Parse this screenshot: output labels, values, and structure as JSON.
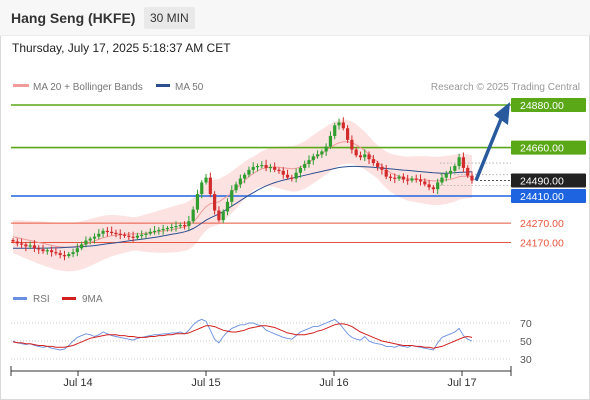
{
  "header": {
    "instrument": "Hang Seng (HKFE)",
    "timeframe": "30 MIN"
  },
  "datetime": "Thursday, July 17, 2025 5:18:37 AM CET",
  "legend": {
    "bollinger": "MA 20 + Bollinger Bands",
    "ma50": "MA 50",
    "credit": "Research © 2025 Trading Central"
  },
  "rsi_legend": {
    "rsi": "RSI",
    "ma": "9MA"
  },
  "colors": {
    "resistance": "#5aa817",
    "support": "#1e64e0",
    "pivot": "#e8553e",
    "current": "#222222",
    "arrow": "#2a5a9e",
    "bollinger_fill": "#fde2e2",
    "ma20": "#f19a9a",
    "ma50": "#2d4f8f",
    "candle_up": "#2f9e2f",
    "candle_down": "#d22b2b",
    "rsi_line": "#6a8fe0",
    "rsi_ma": "#d22020"
  },
  "chart_data": {
    "type": "candlestick",
    "x_ticks": [
      "Jul 14",
      "Jul 15",
      "Jul 16",
      "Jul 17"
    ],
    "y_scale": {
      "min": 23950,
      "max": 24950
    },
    "levels": [
      {
        "label": "24880.00",
        "value": 24880,
        "kind": "resistance"
      },
      {
        "label": "24660.00",
        "value": 24660,
        "kind": "resistance"
      },
      {
        "label": "24490.00",
        "value": 24490,
        "kind": "current"
      },
      {
        "label": "24410.00",
        "value": 24410,
        "kind": "support"
      },
      {
        "label": "24270.00",
        "value": 24270,
        "kind": "pivot"
      },
      {
        "label": "24170.00",
        "value": 24170,
        "kind": "pivot"
      }
    ],
    "close_series": [
      24175,
      24165,
      24160,
      24150,
      24155,
      24140,
      24135,
      24125,
      24130,
      24120,
      24115,
      24105,
      24100,
      24110,
      24120,
      24140,
      24160,
      24180,
      24190,
      24200,
      24215,
      24230,
      24225,
      24220,
      24215,
      24210,
      24205,
      24200,
      24195,
      24205,
      24210,
      24215,
      24225,
      24230,
      24235,
      24240,
      24245,
      24250,
      24255,
      24260,
      24255,
      24280,
      24340,
      24420,
      24480,
      24505,
      24420,
      24335,
      24285,
      24330,
      24380,
      24440,
      24470,
      24500,
      24520,
      24545,
      24560,
      24565,
      24570,
      24555,
      24560,
      24545,
      24540,
      24520,
      24505,
      24500,
      24530,
      24555,
      24575,
      24595,
      24615,
      24625,
      24640,
      24665,
      24720,
      24775,
      24790,
      24760,
      24700,
      24650,
      24620,
      24610,
      24625,
      24600,
      24580,
      24560,
      24545,
      24510,
      24505,
      24500,
      24510,
      24495,
      24490,
      24500,
      24495,
      24485,
      24470,
      24455,
      24445,
      24480,
      24505,
      24525,
      24540,
      24565,
      24610,
      24555,
      24515,
      24490
    ],
    "ma20_series": [
      24200,
      24195,
      24190,
      24185,
      24180,
      24175,
      24170,
      24165,
      24160,
      24155,
      24150,
      24148,
      24146,
      24145,
      24147,
      24150,
      24155,
      24162,
      24170,
      24178,
      24186,
      24194,
      24200,
      24205,
      24208,
      24210,
      24212,
      24213,
      24214,
      24215,
      24216,
      24218,
      24220,
      24223,
      24226,
      24229,
      24232,
      24236,
      24240,
      24245,
      24250,
      24258,
      24275,
      24300,
      24330,
      24355,
      24370,
      24375,
      24380,
      24395,
      24410,
      24430,
      24450,
      24470,
      24490,
      24510,
      24525,
      24540,
      24550,
      24555,
      24560,
      24560,
      24558,
      24555,
      24553,
      24550,
      24553,
      24560,
      24570,
      24585,
      24600,
      24615,
      24630,
      24645,
      24660,
      24675,
      24685,
      24690,
      24690,
      24685,
      24675,
      24660,
      24645,
      24625,
      24605,
      24585,
      24565,
      24545,
      24530,
      24520,
      24512,
      24505,
      24500,
      24498,
      24497,
      24495,
      24493,
      24490,
      24488,
      24488,
      24490,
      24493,
      24497,
      24502,
      24510,
      24512,
      24512,
      24510
    ],
    "ma50_series": [
      24140,
      24140,
      24140,
      24140,
      24140,
      24140,
      24140,
      24141,
      24141,
      24142,
      24142,
      24143,
      24144,
      24145,
      24146,
      24147,
      24148,
      24150,
      24152,
      24154,
      24157,
      24160,
      24163,
      24166,
      24169,
      24172,
      24175,
      24178,
      24181,
      24184,
      24187,
      24190,
      24193,
      24196,
      24200,
      24204,
      24208,
      24212,
      24216,
      24220,
      24225,
      24232,
      24242,
      24255,
      24270,
      24285,
      24297,
      24307,
      24317,
      24330,
      24344,
      24358,
      24372,
      24386,
      24400,
      24414,
      24427,
      24440,
      24452,
      24462,
      24471,
      24479,
      24486,
      24492,
      24497,
      24502,
      24507,
      24512,
      24517,
      24522,
      24527,
      24532,
      24537,
      24542,
      24547,
      24552,
      24557,
      24560,
      24562,
      24563,
      24563,
      24562,
      24561,
      24560,
      24558,
      24556,
      24554,
      24552,
      24550,
      24548,
      24546,
      24544,
      24542,
      24540,
      24538,
      24536,
      24534,
      24532,
      24530,
      24529,
      24528,
      24528,
      24529,
      24530,
      24532,
      24533,
      24534,
      24535
    ],
    "rsi_ticks": [
      "70",
      "50",
      "30"
    ],
    "rsi_series": [
      50,
      48,
      47,
      46,
      47,
      45,
      44,
      43,
      44,
      42,
      41,
      40,
      41,
      45,
      50,
      54,
      56,
      58,
      57,
      55,
      57,
      60,
      58,
      56,
      55,
      54,
      53,
      52,
      51,
      53,
      54,
      55,
      56,
      57,
      57,
      58,
      58,
      59,
      59,
      60,
      58,
      62,
      68,
      72,
      74,
      72,
      62,
      52,
      48,
      55,
      60,
      64,
      66,
      68,
      68,
      70,
      70,
      68,
      67,
      62,
      60,
      58,
      56,
      54,
      53,
      52,
      56,
      60,
      62,
      64,
      66,
      66,
      68,
      70,
      72,
      74,
      70,
      64,
      58,
      54,
      52,
      51,
      55,
      50,
      48,
      47,
      46,
      44,
      44,
      43,
      45,
      44,
      43,
      45,
      44,
      43,
      42,
      41,
      40,
      48,
      54,
      56,
      58,
      60,
      64,
      56,
      52,
      50
    ],
    "rsi_ma_series": [
      49,
      48,
      48,
      47,
      47,
      46,
      45,
      45,
      44,
      44,
      43,
      43,
      43,
      44,
      45,
      47,
      49,
      51,
      53,
      54,
      55,
      56,
      57,
      57,
      57,
      56,
      56,
      55,
      55,
      54,
      54,
      54,
      55,
      55,
      56,
      56,
      57,
      57,
      58,
      58,
      58,
      59,
      61,
      63,
      65,
      67,
      67,
      66,
      64,
      62,
      61,
      60,
      60,
      61,
      62,
      64,
      65,
      66,
      67,
      67,
      66,
      65,
      63,
      61,
      59,
      58,
      57,
      57,
      57,
      58,
      59,
      61,
      62,
      64,
      66,
      68,
      69,
      69,
      68,
      66,
      63,
      60,
      58,
      56,
      54,
      52,
      50,
      49,
      48,
      47,
      46,
      45,
      45,
      45,
      44,
      44,
      43,
      43,
      42,
      43,
      44,
      46,
      48,
      50,
      52,
      54,
      55,
      54
    ]
  }
}
